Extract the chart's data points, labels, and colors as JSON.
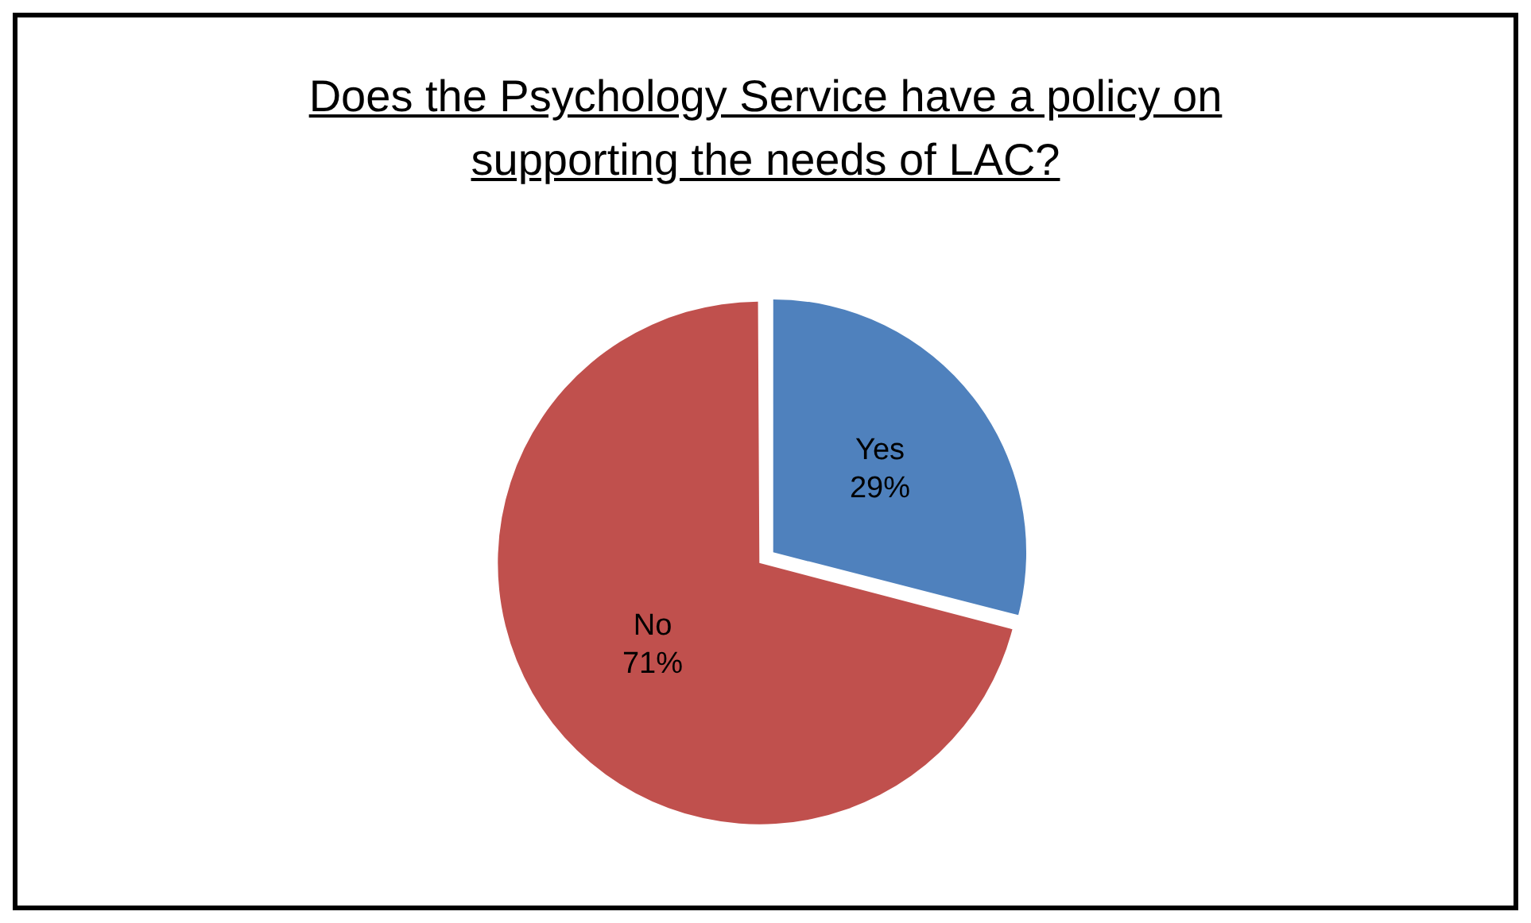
{
  "chart_data": {
    "type": "pie",
    "title": "Does the Psychology Service have a policy on supporting the needs of LAC?",
    "categories": [
      "Yes",
      "No"
    ],
    "values": [
      29,
      71
    ],
    "value_labels": [
      "29%",
      "71%"
    ],
    "colors": [
      "#4f81bd",
      "#c0504d"
    ],
    "legend": false
  }
}
